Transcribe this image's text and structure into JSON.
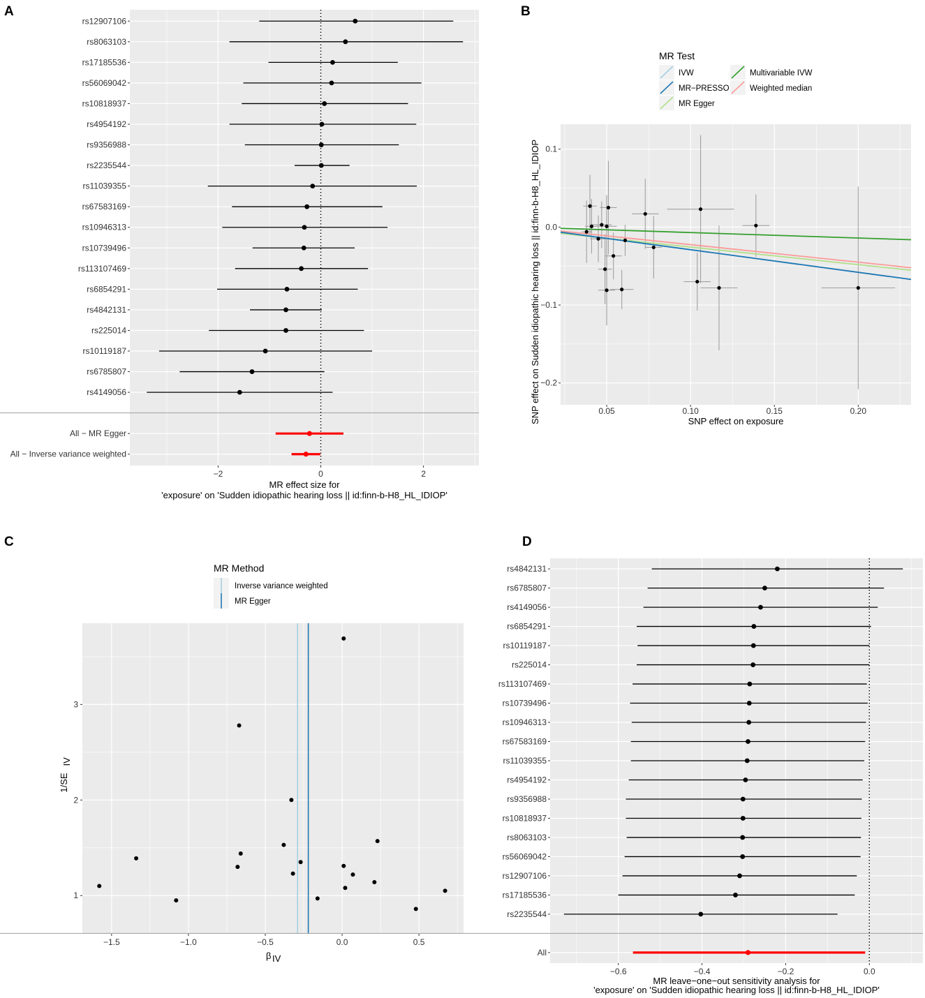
{
  "panels": {
    "A": {
      "label": "A"
    },
    "B": {
      "label": "B",
      "legend_title": "MR Test"
    },
    "C": {
      "label": "C",
      "legend_title": "MR Method"
    },
    "D": {
      "label": "D"
    }
  },
  "colors": {
    "panel_bg": "#ebebeb",
    "grid": "#ffffff",
    "point": "#000000",
    "summary": "#ff0000",
    "ivw_light": "#a6cee3",
    "mr_presso": "#1f78b4",
    "mr_egger_light": "#b2df8a",
    "multivariable_ivw": "#33a02c",
    "weighted_median": "#fb9a99",
    "errorbar_gray": "#a0a0a0"
  },
  "chart_data": [
    {
      "id": "A",
      "type": "forest",
      "title": "",
      "xlabel_line1": "MR effect size for",
      "xlabel_line2": "'exposure' on 'Sudden idiopathic hearing loss || id:finn-b-H8_HL_IDIOP'",
      "xlim": [
        -3.72,
        3.08
      ],
      "xticks": [
        -2,
        0,
        2
      ],
      "xtick_labels": [
        "−2",
        "0",
        "2"
      ],
      "reference_line": 0,
      "snps": [
        {
          "label": "rs12907106",
          "b": 0.67,
          "lo": -1.2,
          "hi": 2.58
        },
        {
          "label": "rs8063103",
          "b": 0.48,
          "lo": -1.78,
          "hi": 2.77
        },
        {
          "label": "rs17185536",
          "b": 0.23,
          "lo": -1.02,
          "hi": 1.5
        },
        {
          "label": "rs56069042",
          "b": 0.21,
          "lo": -1.51,
          "hi": 1.96
        },
        {
          "label": "rs10818937",
          "b": 0.07,
          "lo": -1.54,
          "hi": 1.7
        },
        {
          "label": "rs4954192",
          "b": 0.02,
          "lo": -1.78,
          "hi": 1.86
        },
        {
          "label": "rs9356988",
          "b": 0.01,
          "lo": -1.48,
          "hi": 1.52
        },
        {
          "label": "rs2235544",
          "b": 0.01,
          "lo": -0.51,
          "hi": 0.56
        },
        {
          "label": "rs11039355",
          "b": -0.16,
          "lo": -2.2,
          "hi": 1.87
        },
        {
          "label": "rs67583169",
          "b": -0.27,
          "lo": -1.73,
          "hi": 1.2
        },
        {
          "label": "rs10946313",
          "b": -0.32,
          "lo": -1.92,
          "hi": 1.3
        },
        {
          "label": "rs10739496",
          "b": -0.33,
          "lo": -1.33,
          "hi": 0.66
        },
        {
          "label": "rs113107469",
          "b": -0.38,
          "lo": -1.67,
          "hi": 0.92
        },
        {
          "label": "rs6854291",
          "b": -0.66,
          "lo": -2.02,
          "hi": 0.72
        },
        {
          "label": "rs4842131",
          "b": -0.68,
          "lo": -1.38,
          "hi": 0.02
        },
        {
          "label": "rs225014",
          "b": -0.68,
          "lo": -2.18,
          "hi": 0.84
        },
        {
          "label": "rs10119187",
          "b": -1.08,
          "lo": -3.15,
          "hi": 1.0
        },
        {
          "label": "rs6785807",
          "b": -1.34,
          "lo": -2.75,
          "hi": 0.07
        },
        {
          "label": "rs4149056",
          "b": -1.58,
          "lo": -3.39,
          "hi": 0.23
        }
      ],
      "summary": [
        {
          "label": "All − MR Egger",
          "b": -0.22,
          "lo": -0.88,
          "hi": 0.44
        },
        {
          "label": "All − Inverse variance weighted",
          "b": -0.29,
          "lo": -0.57,
          "hi": -0.01
        }
      ]
    },
    {
      "id": "B",
      "type": "scatter",
      "xlabel": "SNP effect on exposure",
      "ylabel": "SNP effect on Sudden idiopathic hearing loss || id:finn-b-H8_HL_IDIOP",
      "xlim": [
        0.0225,
        0.2315
      ],
      "ylim": [
        -0.228,
        0.132
      ],
      "xticks": [
        0.05,
        0.1,
        0.15,
        0.2
      ],
      "xtick_labels": [
        "0.05",
        "0.10",
        "0.15",
        "0.20"
      ],
      "yticks": [
        -0.2,
        -0.1,
        0.0,
        0.1
      ],
      "ytick_labels": [
        "−0.2",
        "−0.1",
        "0.0",
        "0.1"
      ],
      "legend": [
        {
          "name": "IVW",
          "color": "#a6cee3"
        },
        {
          "name": "MR−PRESSO",
          "color": "#1f78b4"
        },
        {
          "name": "MR Egger",
          "color": "#b2df8a"
        },
        {
          "name": "Multivariable IVW",
          "color": "#33a02c"
        },
        {
          "name": "Weighted median",
          "color": "#fb9a99"
        }
      ],
      "lines": [
        {
          "name": "Weighted median",
          "slope": -0.225,
          "intercept": 0.0,
          "color": "#fb9a99"
        },
        {
          "name": "MR Egger",
          "slope": -0.226,
          "intercept": -0.003,
          "color": "#b2df8a"
        },
        {
          "name": "IVW",
          "slope": -0.29,
          "intercept": 0.0,
          "color": "#a6cee3"
        },
        {
          "name": "MR−PRESSO",
          "slope": -0.29,
          "intercept": 0.0,
          "color": "#1f78b4"
        },
        {
          "name": "Multivariable IVW",
          "slope": -0.07,
          "intercept": 0.0,
          "color": "#33a02c"
        }
      ],
      "points": [
        {
          "x": 0.04,
          "y": 0.027,
          "xse": 0.004,
          "yse": 0.04
        },
        {
          "x": 0.038,
          "y": -0.006,
          "xse": 0.003,
          "yse": 0.04
        },
        {
          "x": 0.041,
          "y": 0.001,
          "xse": 0.004,
          "yse": 0.035
        },
        {
          "x": 0.045,
          "y": -0.015,
          "xse": 0.005,
          "yse": 0.03
        },
        {
          "x": 0.047,
          "y": 0.003,
          "xse": 0.006,
          "yse": 0.03
        },
        {
          "x": 0.05,
          "y": 0.001,
          "xse": 0.006,
          "yse": 0.04
        },
        {
          "x": 0.051,
          "y": 0.025,
          "xse": 0.005,
          "yse": 0.06
        },
        {
          "x": 0.049,
          "y": -0.054,
          "xse": 0.004,
          "yse": 0.045
        },
        {
          "x": 0.05,
          "y": -0.081,
          "xse": 0.005,
          "yse": 0.045
        },
        {
          "x": 0.054,
          "y": -0.037,
          "xse": 0.005,
          "yse": 0.03
        },
        {
          "x": 0.059,
          "y": -0.08,
          "xse": 0.007,
          "yse": 0.025
        },
        {
          "x": 0.061,
          "y": -0.017,
          "xse": 0.004,
          "yse": 0.02
        },
        {
          "x": 0.073,
          "y": 0.017,
          "xse": 0.008,
          "yse": 0.045
        },
        {
          "x": 0.078,
          "y": -0.026,
          "xse": 0.005,
          "yse": 0.04
        },
        {
          "x": 0.104,
          "y": -0.07,
          "xse": 0.008,
          "yse": 0.037
        },
        {
          "x": 0.106,
          "y": 0.023,
          "xse": 0.02,
          "yse": 0.095
        },
        {
          "x": 0.117,
          "y": -0.078,
          "xse": 0.011,
          "yse": 0.08
        },
        {
          "x": 0.139,
          "y": 0.002,
          "xse": 0.008,
          "yse": 0.04
        },
        {
          "x": 0.2,
          "y": -0.078,
          "xse": 0.022,
          "yse": 0.13
        }
      ]
    },
    {
      "id": "C",
      "type": "scatter",
      "title": "",
      "xlabel": "β",
      "xlabel_sub": "IV",
      "ylabel": "1/SE",
      "ylabel_sub": "IV",
      "xlim": [
        -1.69,
        0.79
      ],
      "ylim": [
        0.6,
        3.85
      ],
      "xticks": [
        -1.5,
        -1.0,
        -0.5,
        0.0,
        0.5
      ],
      "xtick_labels": [
        "−1.5",
        "−1.0",
        "−0.5",
        "0.0",
        "0.5"
      ],
      "yticks": [
        1,
        2,
        3
      ],
      "ytick_labels": [
        "1",
        "2",
        "3"
      ],
      "legend": [
        {
          "name": "Inverse variance weighted",
          "color": "#a6cee3"
        },
        {
          "name": "MR Egger",
          "color": "#1f78b4"
        }
      ],
      "vlines": [
        {
          "name": "Inverse variance weighted",
          "x": -0.29,
          "color": "#a6cee3"
        },
        {
          "name": "MR Egger",
          "x": -0.22,
          "color": "#1f78b4"
        }
      ],
      "points": [
        {
          "x": 0.01,
          "y": 3.69
        },
        {
          "x": -0.67,
          "y": 2.78
        },
        {
          "x": -0.33,
          "y": 2.0
        },
        {
          "x": 0.23,
          "y": 1.57
        },
        {
          "x": -0.38,
          "y": 1.53
        },
        {
          "x": -0.66,
          "y": 1.44
        },
        {
          "x": -1.34,
          "y": 1.39
        },
        {
          "x": -0.27,
          "y": 1.35
        },
        {
          "x": 0.01,
          "y": 1.31
        },
        {
          "x": -0.68,
          "y": 1.3
        },
        {
          "x": -0.32,
          "y": 1.23
        },
        {
          "x": 0.07,
          "y": 1.22
        },
        {
          "x": 0.21,
          "y": 1.14
        },
        {
          "x": -1.58,
          "y": 1.1
        },
        {
          "x": 0.02,
          "y": 1.08
        },
        {
          "x": 0.67,
          "y": 1.05
        },
        {
          "x": -0.16,
          "y": 0.97
        },
        {
          "x": -1.08,
          "y": 0.95
        },
        {
          "x": 0.48,
          "y": 0.86
        }
      ]
    },
    {
      "id": "D",
      "type": "forest",
      "xlabel_line1": "MR leave−one−out sensitivity analysis for",
      "xlabel_line2": "'exposure' on 'Sudden idiopathic hearing loss || id:finn-b-H8_HL_IDIOP'",
      "xlim": [
        -0.763,
        0.128
      ],
      "xticks": [
        -0.6,
        -0.4,
        -0.2,
        0.0
      ],
      "xtick_labels": [
        "−0.6",
        "−0.4",
        "−0.2",
        "0.0"
      ],
      "reference_line": 0,
      "snps": [
        {
          "label": "rs4842131",
          "b": -0.22,
          "lo": -0.52,
          "hi": 0.08
        },
        {
          "label": "rs6785807",
          "b": -0.25,
          "lo": -0.53,
          "hi": 0.035
        },
        {
          "label": "rs4149056",
          "b": -0.26,
          "lo": -0.54,
          "hi": 0.02
        },
        {
          "label": "rs6854291",
          "b": -0.276,
          "lo": -0.556,
          "hi": 0.004
        },
        {
          "label": "rs10119187",
          "b": -0.277,
          "lo": -0.554,
          "hi": 0.0
        },
        {
          "label": "rs225014",
          "b": -0.278,
          "lo": -0.556,
          "hi": 0.0
        },
        {
          "label": "rs113107469",
          "b": -0.286,
          "lo": -0.566,
          "hi": -0.006
        },
        {
          "label": "rs10739496",
          "b": -0.287,
          "lo": -0.572,
          "hi": -0.004
        },
        {
          "label": "rs10946313",
          "b": -0.288,
          "lo": -0.568,
          "hi": -0.008
        },
        {
          "label": "rs67583169",
          "b": -0.29,
          "lo": -0.57,
          "hi": -0.01
        },
        {
          "label": "rs11039355",
          "b": -0.292,
          "lo": -0.57,
          "hi": -0.012
        },
        {
          "label": "rs4954192",
          "b": -0.296,
          "lo": -0.575,
          "hi": -0.016
        },
        {
          "label": "rs9356988",
          "b": -0.302,
          "lo": -0.582,
          "hi": -0.018
        },
        {
          "label": "rs10818937",
          "b": -0.302,
          "lo": -0.582,
          "hi": -0.019
        },
        {
          "label": "rs8063103",
          "b": -0.303,
          "lo": -0.58,
          "hi": -0.02
        },
        {
          "label": "rs56069042",
          "b": -0.303,
          "lo": -0.585,
          "hi": -0.021
        },
        {
          "label": "rs12907106",
          "b": -0.31,
          "lo": -0.59,
          "hi": -0.03
        },
        {
          "label": "rs17185536",
          "b": -0.32,
          "lo": -0.6,
          "hi": -0.035
        },
        {
          "label": "rs2235544",
          "b": -0.403,
          "lo": -0.73,
          "hi": -0.076
        }
      ],
      "summary": [
        {
          "label": "All",
          "b": -0.29,
          "lo": -0.565,
          "hi": -0.01
        }
      ]
    }
  ]
}
